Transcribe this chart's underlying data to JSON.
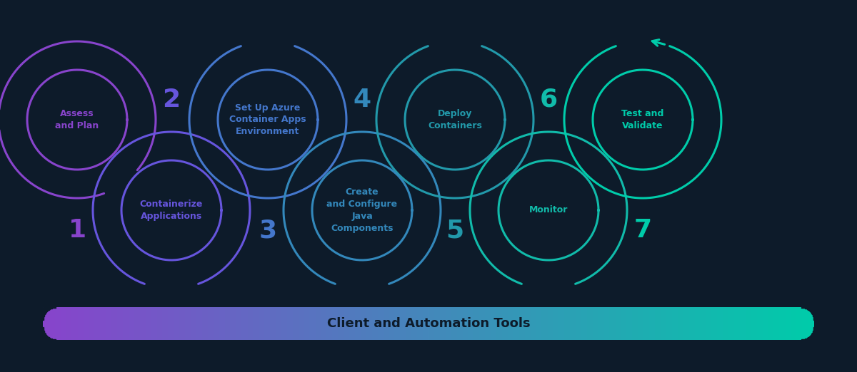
{
  "background_color": "#0d1b2a",
  "steps": [
    {
      "num": "1",
      "label": "Assess\nand Plan",
      "top": true
    },
    {
      "num": "2",
      "label": "Containerize\nApplications",
      "top": false
    },
    {
      "num": "3",
      "label": "Set Up Azure\nContainer Apps\nEnvironment",
      "top": true
    },
    {
      "num": "4",
      "label": "Create\nand Configure\nJava\nComponents",
      "top": false
    },
    {
      "num": "5",
      "label": "Deploy\nContainers",
      "top": true
    },
    {
      "num": "6",
      "label": "Monitor",
      "top": false
    },
    {
      "num": "7",
      "label": "Test and\nValidate",
      "top": true
    }
  ],
  "step_colors": [
    "#8844cc",
    "#6655dd",
    "#4477cc",
    "#3388bb",
    "#2299aa",
    "#11bbaa",
    "#00ccaa"
  ],
  "bar_label": "Client and Automation Tools",
  "bar_color_left": "#8844cc",
  "bar_color_right": "#00ccaa",
  "bar_text_color": "#0d1b2a"
}
